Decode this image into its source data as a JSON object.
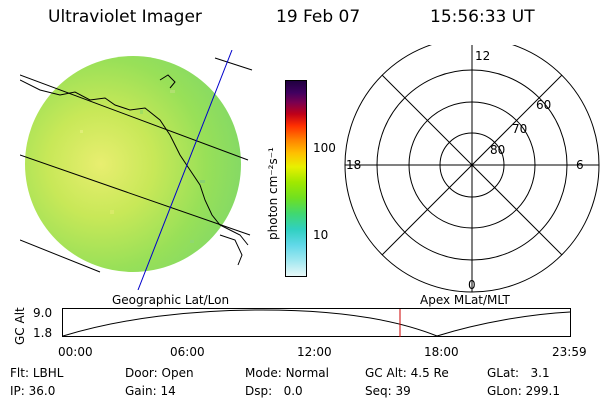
{
  "header": {
    "instrument": "Ultraviolet Imager",
    "date": "19 Feb 07",
    "time": "15:56:33 UT"
  },
  "colorbar": {
    "unit_label": "photon cm⁻²s⁻¹",
    "ticks": [
      "100",
      "10"
    ]
  },
  "polar_plot": {
    "mlt_labels": [
      "12",
      "18",
      "6",
      "0"
    ],
    "lat_labels": [
      "60",
      "70",
      "80"
    ]
  },
  "labels": {
    "geographic": "Geographic Lat/Lon",
    "apex": "Apex MLat/MLT"
  },
  "altitude_plot": {
    "axis_label": "GC Alt",
    "y_ticks": [
      "9.0",
      "1.8"
    ],
    "x_ticks": [
      "00:00",
      "06:00",
      "12:00",
      "18:00",
      "23:59"
    ],
    "marker_time": "15:56"
  },
  "status": {
    "row1": [
      {
        "label": "Flt:",
        "value": "LBHL"
      },
      {
        "label": "Door:",
        "value": "Open"
      },
      {
        "label": "Mode:",
        "value": "Normal"
      },
      {
        "label": "GC Alt:",
        "value": "4.5 Re"
      },
      {
        "label": "GLat:",
        "value": "3.1"
      }
    ],
    "row2": [
      {
        "label": "IP:",
        "value": "36.0"
      },
      {
        "label": "Gain:",
        "value": "14"
      },
      {
        "label": "Dsp:",
        "value": "0.0"
      },
      {
        "label": "Seq:",
        "value": "39"
      },
      {
        "label": "GLon:",
        "value": "299.1"
      }
    ]
  },
  "colors": {
    "marker": "#cc0000",
    "grid_line": "#0000cc"
  }
}
